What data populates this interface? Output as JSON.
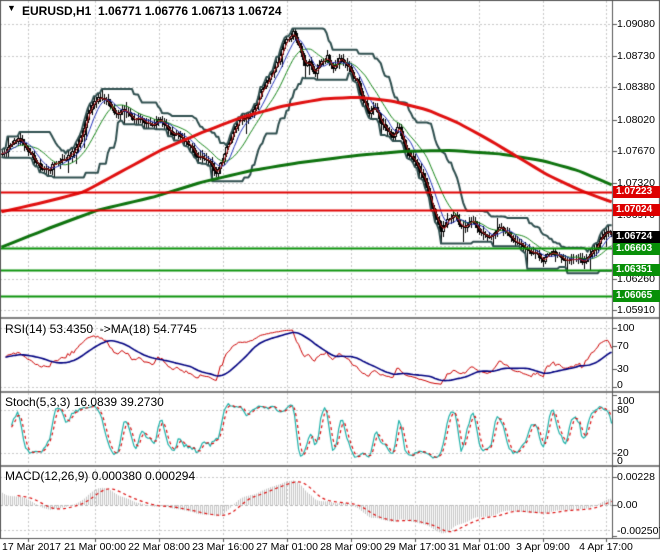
{
  "header": {
    "icon": "▼",
    "title": "EURUSD,H1  1.06771 1.06776 1.06713 1.06724"
  },
  "panes": {
    "rsi": {
      "label": "RSI(14) 53.4350  ->MA(18) 54.7745",
      "ticks": [
        {
          "label": "100",
          "v": 100
        },
        {
          "label": "70",
          "v": 70
        },
        {
          "label": "30",
          "v": 30
        },
        {
          "label": "0",
          "v": 0
        }
      ]
    },
    "stoch": {
      "label": "Stoch(5,3,3) 16.0839 39.2730",
      "ticks": [
        {
          "label": "100",
          "v": 100
        },
        {
          "label": "80",
          "v": 80
        },
        {
          "label": "20",
          "v": 20
        },
        {
          "label": "0",
          "v": 0
        }
      ],
      "levels": [
        80,
        20
      ]
    },
    "macd": {
      "label": "MACD(12,26,9) 0.000380 0.000294",
      "ticks": [
        {
          "label": "0.00228",
          "v": 0.00228
        },
        {
          "label": "0.00",
          "v": 0
        },
        {
          "label": "-0.002507",
          "v": -0.002507
        }
      ]
    }
  },
  "axis": {
    "price_ticks": [
      {
        "label": "1.09080",
        "price": 1.0908
      },
      {
        "label": "1.08730",
        "price": 1.0873
      },
      {
        "label": "1.08380",
        "price": 1.0838
      },
      {
        "label": "1.08020",
        "price": 1.0802
      },
      {
        "label": "1.07670",
        "price": 1.0767
      },
      {
        "label": "1.07320",
        "price": 1.0732
      },
      {
        "label": "1.06970",
        "price": 1.0697
      },
      {
        "label": "1.06620",
        "price": 1.0662
      },
      {
        "label": "1.06260",
        "price": 1.0626
      },
      {
        "label": "1.05910",
        "price": 1.0591
      }
    ],
    "price_markers": [
      {
        "label": "1.07223",
        "price": 1.07223,
        "kind": "resistance"
      },
      {
        "label": "1.07024",
        "price": 1.07024,
        "kind": "resistance"
      },
      {
        "label": "1.06724",
        "price": 1.06724,
        "kind": "current"
      },
      {
        "label": "1.06603",
        "price": 1.06603,
        "kind": "support"
      },
      {
        "label": "1.06351",
        "price": 1.06351,
        "kind": "support"
      },
      {
        "label": "1.06065",
        "price": 1.06065,
        "kind": "support"
      }
    ]
  },
  "colors": {
    "grid": "#c8c8c8",
    "candle": "#000000",
    "bull_fill": "#ffffff",
    "envelope": "#2F4F4F",
    "ma_red": "#e01010",
    "ma_green": "#0e730e",
    "thin_red": "#cc2222",
    "thin_blue": "#2233bb",
    "thin_green": "#17871a",
    "hline_red": "#e00000",
    "hline_green": "#0a930a",
    "box_red": "#dd0000",
    "box_green": "#089008",
    "box_black": "#000000",
    "rsi_line": "#cc0000",
    "rsi_ma": "#000080",
    "stoch_main": "#20b2aa",
    "stoch_signal": "#dd1111",
    "macd_hist": "#c6c6c6",
    "macd_signal": "#dd1111",
    "text": "#111111",
    "separator": "#7f7f7f",
    "border": "#555555"
  },
  "chart_data": {
    "type": "candlestick",
    "symbol": "EURUSD",
    "timeframe": "H1",
    "title": "EURUSD,H1",
    "current_bar": {
      "open": 1.06771,
      "high": 1.06776,
      "low": 1.06713,
      "close": 1.06724
    },
    "ylim": [
      1.0591,
      1.0908
    ],
    "x_labels": [
      "17 Mar 2017",
      "21 Mar 00:00",
      "22 Mar 08:00",
      "23 Mar 16:00",
      "27 Mar 01:00",
      "28 Mar 09:00",
      "29 Mar 17:00",
      "31 Mar 01:00",
      "3 Apr 09:00",
      "4 Apr 17:00"
    ],
    "n_bars": 305,
    "close_waypoints": [
      [
        0,
        1.0763
      ],
      [
        4,
        1.0776
      ],
      [
        8,
        1.078
      ],
      [
        12,
        1.0766
      ],
      [
        17,
        1.0752
      ],
      [
        22,
        1.0746
      ],
      [
        27,
        1.0754
      ],
      [
        32,
        1.0759
      ],
      [
        36,
        1.0768
      ],
      [
        40,
        1.079
      ],
      [
        44,
        1.0811
      ],
      [
        48,
        1.0825
      ],
      [
        52,
        1.0822
      ],
      [
        56,
        1.0811
      ],
      [
        60,
        1.0815
      ],
      [
        65,
        1.0806
      ],
      [
        70,
        1.0808
      ],
      [
        75,
        1.0797
      ],
      [
        80,
        1.08
      ],
      [
        85,
        1.0789
      ],
      [
        90,
        1.0786
      ],
      [
        95,
        1.0774
      ],
      [
        100,
        1.0761
      ],
      [
        104,
        1.075
      ],
      [
        107,
        1.0744
      ],
      [
        110,
        1.0757
      ],
      [
        114,
        1.0785
      ],
      [
        118,
        1.0804
      ],
      [
        122,
        1.0806
      ],
      [
        126,
        1.0817
      ],
      [
        130,
        1.0837
      ],
      [
        134,
        1.0854
      ],
      [
        138,
        1.0866
      ],
      [
        141,
        1.0888
      ],
      [
        145,
        1.0898
      ],
      [
        148,
        1.0878
      ],
      [
        151,
        1.0858
      ],
      [
        153,
        1.0863
      ],
      [
        156,
        1.0853
      ],
      [
        159,
        1.0868
      ],
      [
        162,
        1.0872
      ],
      [
        165,
        1.086
      ],
      [
        168,
        1.087
      ],
      [
        171,
        1.086
      ],
      [
        174,
        1.0852
      ],
      [
        177,
        1.0842
      ],
      [
        180,
        1.0823
      ],
      [
        183,
        1.0807
      ],
      [
        186,
        1.0815
      ],
      [
        189,
        1.08
      ],
      [
        192,
        1.0793
      ],
      [
        195,
        1.0788
      ],
      [
        198,
        1.0796
      ],
      [
        201,
        1.0773
      ],
      [
        204,
        1.0763
      ],
      [
        207,
        1.0755
      ],
      [
        210,
        1.0741
      ],
      [
        213,
        1.0723
      ],
      [
        216,
        1.0701
      ],
      [
        219,
        1.0682
      ],
      [
        222,
        1.0692
      ],
      [
        225,
        1.07
      ],
      [
        228,
        1.0692
      ],
      [
        231,
        1.0684
      ],
      [
        234,
        1.0687
      ],
      [
        238,
        1.0678
      ],
      [
        242,
        1.0672
      ],
      [
        246,
        1.0684
      ],
      [
        250,
        1.068
      ],
      [
        254,
        1.0672
      ],
      [
        258,
        1.0666
      ],
      [
        262,
        1.066
      ],
      [
        266,
        1.0656
      ],
      [
        270,
        1.0649
      ],
      [
        274,
        1.0655
      ],
      [
        278,
        1.065
      ],
      [
        282,
        1.0642
      ],
      [
        286,
        1.0648
      ],
      [
        290,
        1.0643
      ],
      [
        294,
        1.0658
      ],
      [
        297,
        1.0668
      ],
      [
        299,
        1.0674
      ],
      [
        301,
        1.0678
      ],
      [
        302,
        1.0679
      ],
      [
        303,
        1.0677
      ],
      [
        304,
        1.06724
      ]
    ],
    "ma_red_waypoints": [
      [
        0,
        1.07
      ],
      [
        20,
        1.071
      ],
      [
        41,
        1.0722
      ],
      [
        60,
        1.0745
      ],
      [
        80,
        1.0769
      ],
      [
        100,
        1.0788
      ],
      [
        120,
        1.0805
      ],
      [
        140,
        1.0817
      ],
      [
        160,
        1.0825
      ],
      [
        177,
        1.0827
      ],
      [
        194,
        1.0823
      ],
      [
        212,
        1.0813
      ],
      [
        227,
        1.0799
      ],
      [
        242,
        1.0781
      ],
      [
        257,
        1.0761
      ],
      [
        272,
        1.0741
      ],
      [
        289,
        1.0723
      ],
      [
        304,
        1.0711
      ]
    ],
    "ma_green_waypoints": [
      [
        0,
        1.0661
      ],
      [
        25,
        1.0683
      ],
      [
        48,
        1.0702
      ],
      [
        75,
        1.0716
      ],
      [
        100,
        1.0733
      ],
      [
        125,
        1.0746
      ],
      [
        150,
        1.0755
      ],
      [
        175,
        1.0762
      ],
      [
        200,
        1.0767
      ],
      [
        224,
        1.0768
      ],
      [
        249,
        1.0764
      ],
      [
        269,
        1.0757
      ],
      [
        287,
        1.0746
      ],
      [
        304,
        1.073
      ]
    ],
    "hlines": [
      {
        "price": 1.07223,
        "color": "red"
      },
      {
        "price": 1.07024,
        "color": "red"
      },
      {
        "price": 1.06603,
        "color": "green"
      },
      {
        "price": 1.06351,
        "color": "green"
      },
      {
        "price": 1.06065,
        "color": "green"
      }
    ],
    "indicators": {
      "rsi": {
        "period": 14,
        "ma_period": 18,
        "value": 53.435,
        "ma_value": 54.7745
      },
      "stoch": {
        "params": [
          5,
          3,
          3
        ],
        "value": 16.0839,
        "signal": 39.273
      },
      "macd": {
        "params": [
          12,
          26,
          9
        ],
        "value": 0.00038,
        "signal": 0.000294
      }
    },
    "envelope_window": 16
  }
}
